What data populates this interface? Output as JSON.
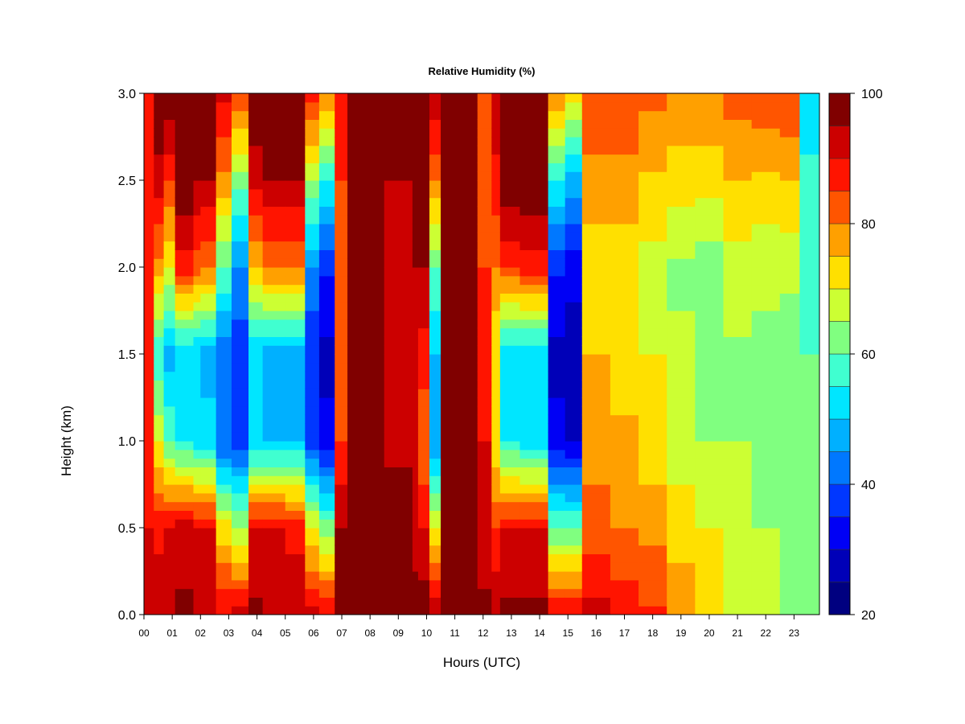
{
  "chart_data": {
    "type": "heatmap",
    "title": "Relative Humidity (%)",
    "xlabel": "Hours (UTC)",
    "ylabel": "Height (km)",
    "x_ticks": [
      "00",
      "01",
      "02",
      "03",
      "04",
      "05",
      "06",
      "07",
      "08",
      "09",
      "10",
      "11",
      "12",
      "13",
      "14",
      "15",
      "16",
      "17",
      "18",
      "19",
      "20",
      "21",
      "22",
      "23"
    ],
    "y_ticks": [
      "0.0",
      "0.5",
      "1.0",
      "1.5",
      "2.0",
      "2.5",
      "3.0"
    ],
    "xlim": [
      0,
      23.9
    ],
    "ylim": [
      0,
      3.0
    ],
    "colorbar": {
      "levels": [
        20,
        25,
        30,
        35,
        40,
        45,
        50,
        55,
        60,
        65,
        70,
        75,
        80,
        85,
        90,
        95,
        100
      ],
      "tick_labels": [
        "20",
        "40",
        "60",
        "80",
        "100"
      ],
      "colors": [
        "#000080",
        "#0000B8",
        "#0000F5",
        "#0037FF",
        "#0078FF",
        "#00B0FF",
        "#00E6FF",
        "#40FFD0",
        "#80FF80",
        "#CCFF33",
        "#FFE000",
        "#FFA000",
        "#FF5500",
        "#FF1400",
        "#CC0000",
        "#800000"
      ]
    },
    "columns": [
      {
        "x0": 0.0,
        "x1": 0.35,
        "v": [
          90,
          90,
          88,
          86,
          85,
          85,
          85
        ]
      },
      {
        "x0": 0.35,
        "x1": 0.7,
        "v": [
          95,
          88,
          70,
          55,
          78,
          93,
          100
        ]
      },
      {
        "x0": 0.7,
        "x1": 1.1,
        "v": [
          95,
          90,
          60,
          48,
          70,
          85,
          100
        ]
      },
      {
        "x0": 1.1,
        "x1": 1.75,
        "v": [
          96,
          92,
          55,
          50,
          88,
          100,
          100
        ]
      },
      {
        "x0": 1.75,
        "x1": 2.0,
        "v": [
          95,
          90,
          52,
          50,
          82,
          95,
          100
        ]
      },
      {
        "x0": 2.0,
        "x1": 2.55,
        "v": [
          95,
          90,
          52,
          48,
          80,
          95,
          100
        ]
      },
      {
        "x0": 2.55,
        "x1": 3.1,
        "v": [
          90,
          72,
          40,
          40,
          60,
          78,
          92
        ]
      },
      {
        "x0": 3.1,
        "x1": 3.7,
        "v": [
          92,
          65,
          38,
          36,
          45,
          62,
          85
        ]
      },
      {
        "x0": 3.7,
        "x1": 4.2,
        "v": [
          96,
          90,
          50,
          50,
          75,
          92,
          100
        ]
      },
      {
        "x0": 4.2,
        "x1": 5.0,
        "v": [
          95,
          90,
          50,
          48,
          80,
          95,
          100
        ]
      },
      {
        "x0": 5.0,
        "x1": 5.7,
        "v": [
          95,
          88,
          50,
          48,
          80,
          95,
          100
        ]
      },
      {
        "x0": 5.7,
        "x1": 6.2,
        "v": [
          92,
          70,
          38,
          35,
          45,
          65,
          88
        ]
      },
      {
        "x0": 6.2,
        "x1": 6.75,
        "v": [
          90,
          62,
          32,
          28,
          36,
          55,
          80
        ]
      },
      {
        "x0": 6.75,
        "x1": 7.2,
        "v": [
          98,
          95,
          85,
          80,
          80,
          85,
          90
        ]
      },
      {
        "x0": 7.2,
        "x1": 8.5,
        "v": [
          99,
          98,
          95,
          95,
          95,
          95,
          98
        ]
      },
      {
        "x0": 8.5,
        "x1": 9.5,
        "v": [
          99,
          97,
          94,
          94,
          94,
          95,
          97
        ]
      },
      {
        "x0": 9.5,
        "x1": 9.7,
        "v": [
          98,
          92,
          90,
          92,
          95,
          97,
          99
        ]
      },
      {
        "x0": 9.7,
        "x1": 10.1,
        "v": [
          98,
          90,
          80,
          88,
          95,
          100,
          100
        ]
      },
      {
        "x0": 10.1,
        "x1": 10.5,
        "v": [
          95,
          70,
          45,
          50,
          60,
          80,
          95
        ]
      },
      {
        "x0": 10.5,
        "x1": 11.8,
        "v": [
          100,
          100,
          99,
          100,
          100,
          100,
          100
        ]
      },
      {
        "x0": 11.8,
        "x1": 12.3,
        "v": [
          96,
          92,
          90,
          88,
          85,
          84,
          82
        ]
      },
      {
        "x0": 12.3,
        "x1": 12.6,
        "v": [
          95,
          85,
          70,
          70,
          80,
          88,
          95
        ]
      },
      {
        "x0": 12.6,
        "x1": 13.3,
        "v": [
          96,
          90,
          55,
          50,
          85,
          100,
          100
        ]
      },
      {
        "x0": 13.3,
        "x1": 14.3,
        "v": [
          96,
          90,
          52,
          50,
          88,
          100,
          100
        ]
      },
      {
        "x0": 14.3,
        "x1": 14.9,
        "v": [
          90,
          60,
          32,
          28,
          36,
          55,
          80
        ]
      },
      {
        "x0": 14.9,
        "x1": 15.5,
        "v": [
          90,
          60,
          30,
          27,
          32,
          48,
          72
        ]
      },
      {
        "x0": 15.5,
        "x1": 16.5,
        "v": [
          92,
          82,
          78,
          75,
          72,
          78,
          85
        ]
      },
      {
        "x0": 16.5,
        "x1": 17.5,
        "v": [
          88,
          80,
          76,
          72,
          72,
          78,
          85
        ]
      },
      {
        "x0": 17.5,
        "x1": 18.5,
        "v": [
          86,
          78,
          72,
          70,
          68,
          74,
          82
        ]
      },
      {
        "x0": 18.5,
        "x1": 19.5,
        "v": [
          80,
          72,
          68,
          66,
          64,
          72,
          80
        ]
      },
      {
        "x0": 19.5,
        "x1": 20.5,
        "v": [
          72,
          70,
          65,
          62,
          62,
          72,
          80
        ]
      },
      {
        "x0": 20.5,
        "x1": 21.5,
        "v": [
          68,
          68,
          65,
          64,
          68,
          75,
          82
        ]
      },
      {
        "x0": 21.5,
        "x1": 22.5,
        "v": [
          65,
          65,
          64,
          64,
          66,
          74,
          84
        ]
      },
      {
        "x0": 22.5,
        "x1": 23.2,
        "v": [
          62,
          62,
          62,
          62,
          66,
          75,
          85
        ]
      },
      {
        "x0": 23.2,
        "x1": 23.9,
        "v": [
          62,
          60,
          60,
          60,
          58,
          56,
          52
        ]
      }
    ]
  }
}
